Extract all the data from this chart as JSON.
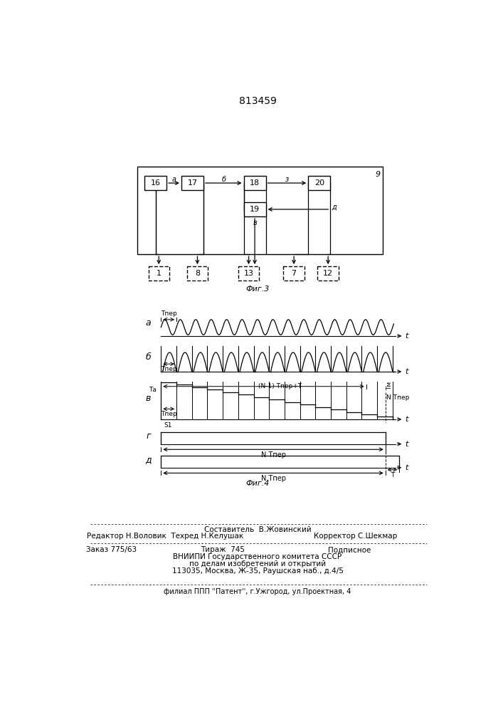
{
  "title_number": "813459",
  "fig3_label": "Фиг.3",
  "fig4_label": "Фиг.4",
  "background": "#ffffff",
  "footer_line1": "Составитель  В.Жовинский",
  "footer_line2a": "Редактор Н.Воловик  Техред Н.Келушак",
  "footer_line2b": "Корректор С.Шекмар",
  "footer_line3a": "Заказ 775/63",
  "footer_line3b": "Тираж  745",
  "footer_line3c": "Подписное",
  "footer_line4": "ВНИИПИ Государственного комитета СССР",
  "footer_line5": "по делам изобретений и открытий",
  "footer_line6": "113035, Москва, Ж-35, Раушская наб., д.4/5",
  "footer_line7": "филиал ППП ''Патент'', г.Ужгород, ул.Проектная, 4"
}
